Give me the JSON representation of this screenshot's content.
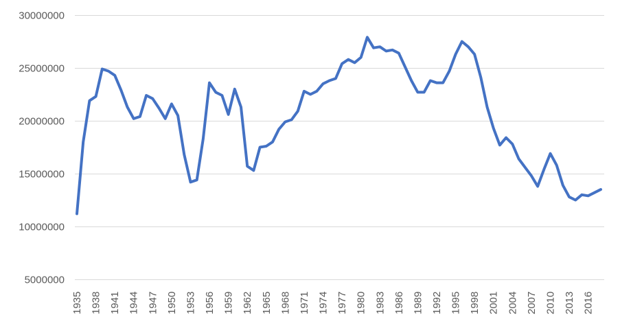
{
  "chart_data": {
    "type": "line",
    "title": "",
    "xlabel": "",
    "ylabel": "",
    "ylim": [
      5000000,
      30000000
    ],
    "y_ticks": [
      5000000,
      10000000,
      15000000,
      20000000,
      25000000,
      30000000
    ],
    "y_tick_labels": [
      "5000000",
      "10000000",
      "15000000",
      "20000000",
      "25000000",
      "30000000"
    ],
    "x_tick_labels": [
      "1935",
      "1938",
      "1941",
      "1944",
      "1947",
      "1950",
      "1953",
      "1956",
      "1959",
      "1962",
      "1965",
      "1968",
      "1971",
      "1974",
      "1977",
      "1980",
      "1983",
      "1986",
      "1989",
      "1992",
      "1995",
      "1998",
      "2001",
      "2004",
      "2007",
      "2010",
      "2013",
      "2016"
    ],
    "grid": true,
    "legend": "none",
    "line_color": "#4472C4",
    "x": [
      1935,
      1936,
      1937,
      1938,
      1939,
      1940,
      1941,
      1942,
      1943,
      1944,
      1945,
      1946,
      1947,
      1948,
      1949,
      1950,
      1951,
      1952,
      1953,
      1954,
      1955,
      1956,
      1957,
      1958,
      1959,
      1960,
      1961,
      1962,
      1963,
      1964,
      1965,
      1966,
      1967,
      1968,
      1969,
      1970,
      1971,
      1972,
      1973,
      1974,
      1975,
      1976,
      1977,
      1978,
      1979,
      1980,
      1981,
      1982,
      1983,
      1984,
      1985,
      1986,
      1987,
      1988,
      1989,
      1990,
      1991,
      1992,
      1993,
      1994,
      1995,
      1996,
      1997,
      1998,
      1999,
      2000,
      2001,
      2002,
      2003,
      2004,
      2005,
      2006,
      2007,
      2008,
      2009,
      2010,
      2011,
      2012,
      2013,
      2014,
      2015,
      2016,
      2017,
      2018
    ],
    "series": [
      {
        "values": [
          11200000,
          18000000,
          21900000,
          22300000,
          24900000,
          24700000,
          24300000,
          22900000,
          21300000,
          20200000,
          20400000,
          22400000,
          22100000,
          21200000,
          20200000,
          21600000,
          20500000,
          16800000,
          14200000,
          14400000,
          18300000,
          23600000,
          22700000,
          22400000,
          20600000,
          23000000,
          21300000,
          15700000,
          15300000,
          17500000,
          17600000,
          18000000,
          19200000,
          19900000,
          20100000,
          20900000,
          22800000,
          22500000,
          22800000,
          23500000,
          23800000,
          24000000,
          25400000,
          25800000,
          25500000,
          26000000,
          27900000,
          26900000,
          27000000,
          26600000,
          26700000,
          26400000,
          25100000,
          23800000,
          22700000,
          22700000,
          23800000,
          23600000,
          23600000,
          24700000,
          26300000,
          27500000,
          27000000,
          26300000,
          24100000,
          21300000,
          19300000,
          17700000,
          18400000,
          17800000,
          16400000,
          15600000,
          14800000,
          13800000,
          15400000,
          16900000,
          15800000,
          13900000,
          12800000,
          12500000,
          13000000,
          12900000,
          13200000,
          13500000
        ]
      }
    ]
  }
}
